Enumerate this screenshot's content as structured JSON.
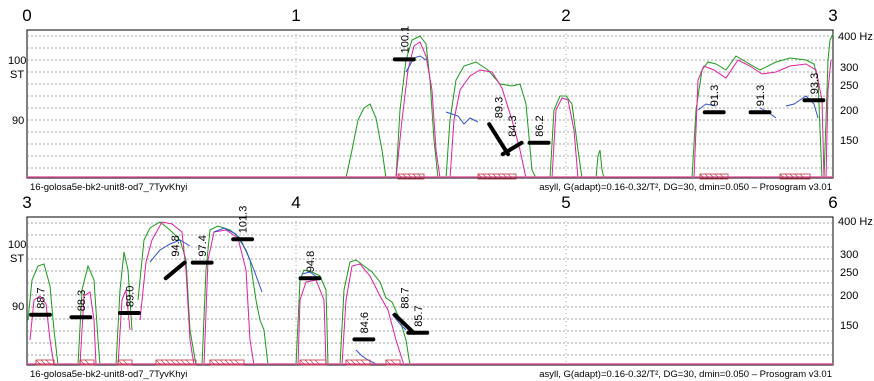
{
  "chart_data": [
    {
      "type": "line",
      "title": "",
      "x_range": [
        0,
        3
      ],
      "x_ticks": [
        "0",
        "1",
        "2",
        "3"
      ],
      "st_ticks": [
        "100",
        "90"
      ],
      "st_unit": "ST",
      "hz_ticks": [
        "400",
        "300",
        "250",
        "200",
        "150"
      ],
      "hz_unit": "Hz",
      "file_label": "16-golosa5e-bk2-unit8-od7_7TyvKhyi",
      "params_label": "asyll, G(adapt)=0.16-0.32/T², DG=30, dmin=0.050 – Prosogram v3.01",
      "nuclei": [
        {
          "x": 1.4,
          "y0": 100.1,
          "y1": 100.1,
          "label": "100.1"
        },
        {
          "x": 1.75,
          "y0": 89.3,
          "y1": 84.3,
          "label": "89.3"
        },
        {
          "x": 1.8,
          "y0": 84.3,
          "y1": 86.2,
          "label": "84.3"
        },
        {
          "x": 1.9,
          "y0": 86.2,
          "y1": 86.2,
          "label": "86.2"
        },
        {
          "x": 2.55,
          "y0": 91.3,
          "y1": 91.3,
          "label": "91.3"
        },
        {
          "x": 2.72,
          "y0": 91.3,
          "y1": 91.3,
          "label": "91.3"
        },
        {
          "x": 2.92,
          "y0": 93.3,
          "y1": 93.3,
          "label": "93.3"
        }
      ]
    },
    {
      "type": "line",
      "title": "",
      "x_range": [
        3,
        6
      ],
      "x_ticks": [
        "3",
        "4",
        "5",
        "6"
      ],
      "st_ticks": [
        "100",
        "90"
      ],
      "st_unit": "ST",
      "hz_ticks": [
        "400 Hz",
        "300",
        "250",
        "200",
        "150"
      ],
      "file_label": "16-golosa5e-bk2-unit8-od7_7TyvKhyi",
      "params_label": "asyll, G(adapt)=0.16-0.32/T², DG=30, dmin=0.050 – Prosogram v3.01",
      "nuclei": [
        {
          "x": 3.05,
          "y0": 88.7,
          "y1": 88.7,
          "label": "88.7"
        },
        {
          "x": 3.2,
          "y0": 88.3,
          "y1": 88.3,
          "label": "88.3"
        },
        {
          "x": 3.38,
          "y0": 89.0,
          "y1": 89.0,
          "label": "89.0"
        },
        {
          "x": 3.55,
          "y0": 94.8,
          "y1": 97.4,
          "label": "94.8"
        },
        {
          "x": 3.65,
          "y0": 97.4,
          "y1": 97.4,
          "label": "97.4"
        },
        {
          "x": 3.8,
          "y0": 101.3,
          "y1": 101.3,
          "label": "101.3"
        },
        {
          "x": 4.05,
          "y0": 94.8,
          "y1": 94.8,
          "label": "94.8"
        },
        {
          "x": 4.25,
          "y0": 84.6,
          "y1": 84.6,
          "label": "84.6"
        },
        {
          "x": 4.4,
          "y0": 88.7,
          "y1": 85.7,
          "label": "88.7"
        },
        {
          "x": 4.45,
          "y0": 85.7,
          "y1": 85.7,
          "label": "85.7"
        }
      ]
    }
  ],
  "hz_unit_top": "400 Hz"
}
